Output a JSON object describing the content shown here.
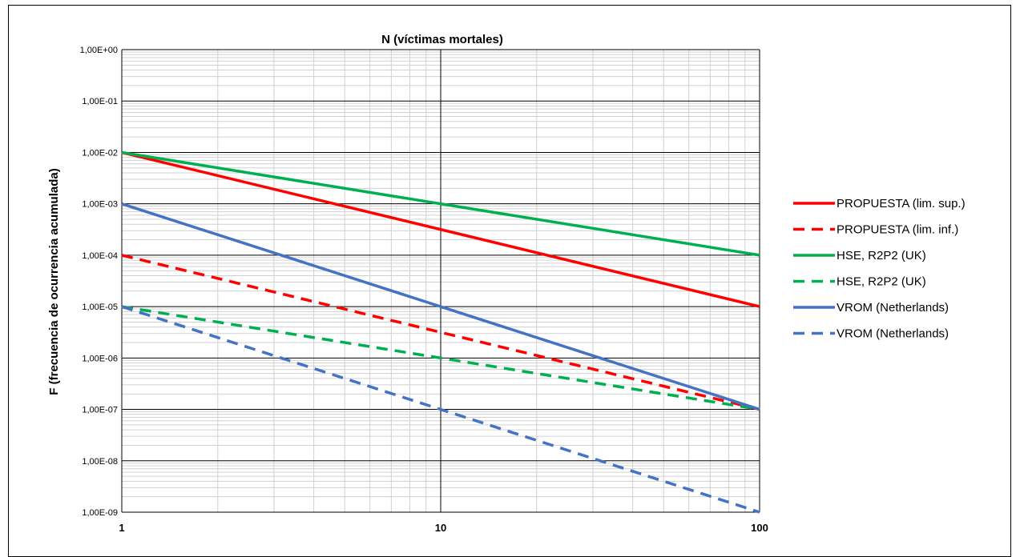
{
  "chart_data": {
    "type": "line",
    "title": "N (víctimas mortales)",
    "ylabel": "F (frecuencia de ocurrencia acumulada)",
    "xlabel": "",
    "x_scale": "log",
    "y_scale": "log",
    "xlim": [
      1,
      100
    ],
    "ylim": [
      1e-09,
      1
    ],
    "x_ticks": [
      {
        "value": 1,
        "label": "1"
      },
      {
        "value": 10,
        "label": "10"
      },
      {
        "value": 100,
        "label": "100"
      }
    ],
    "y_ticks": [
      {
        "value": 1,
        "label": "1,00E+00"
      },
      {
        "value": 0.1,
        "label": "1,00E-01"
      },
      {
        "value": 0.01,
        "label": "1,00E-02"
      },
      {
        "value": 0.001,
        "label": "1,00E-03"
      },
      {
        "value": 0.0001,
        "label": "1,00E-04"
      },
      {
        "value": 1e-05,
        "label": "1,00E-05"
      },
      {
        "value": 1e-06,
        "label": "1,00E-06"
      },
      {
        "value": 1e-07,
        "label": "1,00E-07"
      },
      {
        "value": 1e-08,
        "label": "1,00E-08"
      },
      {
        "value": 1e-09,
        "label": "1,00E-09"
      }
    ],
    "grid": true,
    "legend_position": "right",
    "series": [
      {
        "name": "PROPUESTA (lim. sup.)",
        "color": "#ff0000",
        "dash": "solid",
        "x": [
          1,
          100
        ],
        "y": [
          0.01,
          1e-05
        ]
      },
      {
        "name": "PROPUESTA (lim. inf.)",
        "color": "#ff0000",
        "dash": "dashed",
        "x": [
          1,
          100
        ],
        "y": [
          0.0001,
          1e-07
        ]
      },
      {
        "name": "HSE, R2P2 (UK)",
        "color": "#00b050",
        "dash": "solid",
        "x": [
          1,
          100
        ],
        "y": [
          0.01,
          0.0001
        ]
      },
      {
        "name": "HSE, R2P2 (UK)",
        "color": "#00b050",
        "dash": "dashed",
        "x": [
          1,
          100
        ],
        "y": [
          1e-05,
          1e-07
        ]
      },
      {
        "name": "VROM (Netherlands)",
        "color": "#4472c4",
        "dash": "solid",
        "x": [
          1,
          100
        ],
        "y": [
          0.001,
          1e-07
        ]
      },
      {
        "name": "VROM (Netherlands)",
        "color": "#4472c4",
        "dash": "dashed",
        "x": [
          1,
          100
        ],
        "y": [
          1e-05,
          1e-09
        ]
      }
    ]
  }
}
